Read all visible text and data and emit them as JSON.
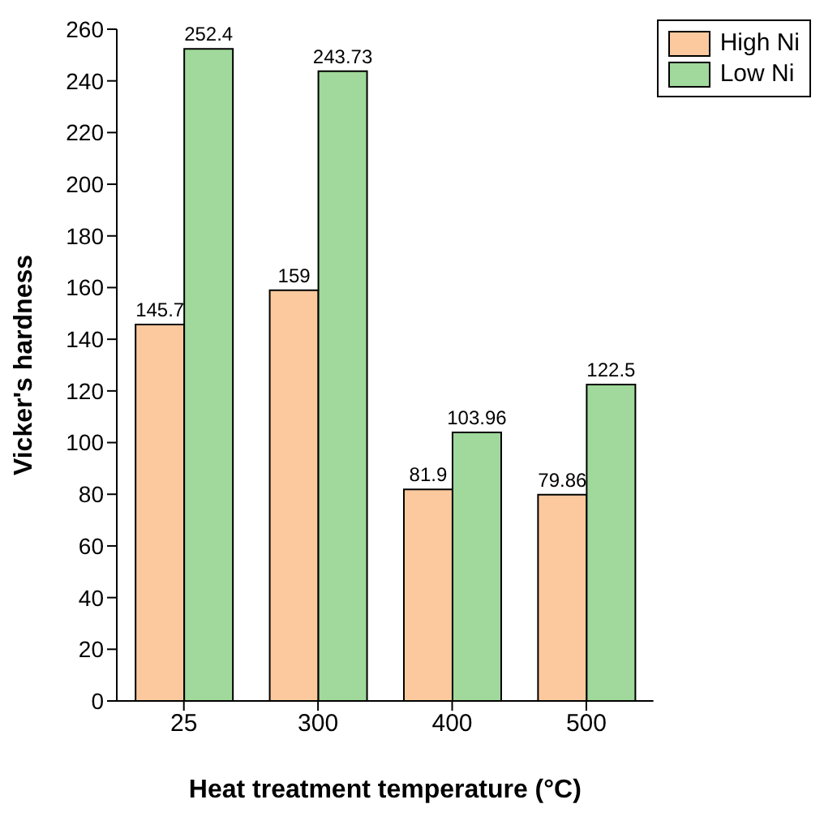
{
  "chart_data": {
    "type": "bar",
    "xlabel": "Heat treatment temperature (°C)",
    "ylabel": "Vicker's hardness",
    "categories": [
      "25",
      "300",
      "400",
      "500"
    ],
    "series": [
      {
        "name": "High Ni",
        "color": "#fbc99d",
        "values": [
          145.7,
          159,
          81.9,
          79.86
        ]
      },
      {
        "name": "Low Ni",
        "color": "#a0d99b",
        "values": [
          252.4,
          243.73,
          103.96,
          122.5
        ]
      }
    ],
    "ylim": [
      0,
      260
    ],
    "yticks": [
      0,
      20,
      40,
      60,
      80,
      100,
      120,
      140,
      160,
      180,
      200,
      220,
      240,
      260
    ],
    "data_labels": true,
    "legend": "top right",
    "grid": false
  }
}
